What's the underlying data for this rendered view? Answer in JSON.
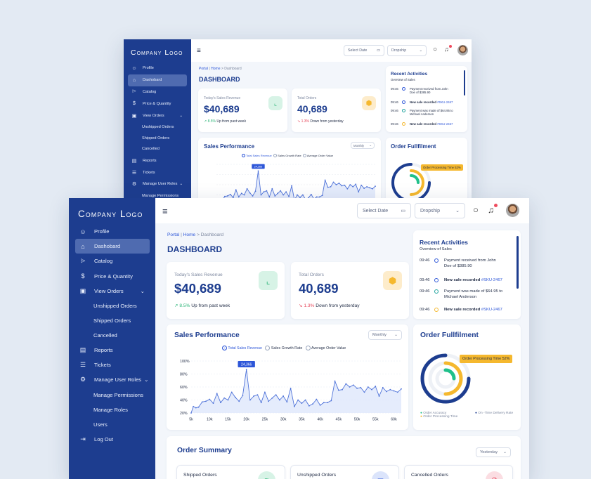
{
  "app": {
    "logo": "Company Logo",
    "user_avatar": "user-avatar"
  },
  "sidebar": {
    "items": [
      {
        "label": "Profile",
        "icon": "user-icon"
      },
      {
        "label": "Dashobard",
        "icon": "home-icon",
        "active": true
      },
      {
        "label": "Catalog",
        "icon": "tag-icon"
      },
      {
        "label": "Price & Quantity",
        "icon": "dollar-icon"
      },
      {
        "label": "View Orders",
        "icon": "orders-icon",
        "expanded": true
      },
      {
        "label": "Reports",
        "icon": "report-icon"
      },
      {
        "label": "Tickets",
        "icon": "ticket-icon"
      },
      {
        "label": "Manage User Roles",
        "icon": "gear-icon",
        "expanded": true
      },
      {
        "label": "Log Out",
        "icon": "logout-icon"
      }
    ],
    "orders_sub": [
      "Unshipped Orders",
      "Shipped Orders",
      "Cancelled"
    ],
    "roles_sub": [
      "Manage Permissions",
      "Manage Roles",
      "Users"
    ]
  },
  "topbar": {
    "date_placeholder": "Select Date",
    "dropdown_value": "Dropship"
  },
  "breadcrumb": {
    "portal": "Portal",
    "sep": "|",
    "home": "Home",
    "arrow": ">",
    "current": "Dashboard"
  },
  "page_title": "DASHBOARD",
  "revenue": {
    "label": "Today's Sales Revenue",
    "value": "$40,689",
    "change": "8.5%",
    "change_text": "Up from past week"
  },
  "orders": {
    "label": "Total Orders",
    "value": "40,689",
    "change": "1.3%",
    "change_text": "Down from yesterday"
  },
  "activities": {
    "title": "Recent Activities",
    "subtitle": "Overview of Sales",
    "items": [
      {
        "time": "09:46",
        "text": "Payment received from John Doe of $385.90",
        "link": "",
        "color": "#2d56d8",
        "bold": false
      },
      {
        "time": "09:46",
        "text": "New sale recorded",
        "link": "#SKU-2467",
        "color": "#2d56d8",
        "bold": true
      },
      {
        "time": "09:46",
        "text": "Payment was made of $64.95 to Michael Anderson",
        "link": "",
        "color": "#20a39e",
        "bold": false
      },
      {
        "time": "09:46",
        "text": "New sale recorded",
        "link": "#SKU-2467",
        "color": "#f5b82e",
        "bold": true
      }
    ]
  },
  "sales_perf": {
    "title": "Sales Performance",
    "period": "Monthly",
    "legend": [
      "Total Sales Revenue",
      "Sales Growth Rate",
      "Average Order Value"
    ],
    "peak_label": "24,366"
  },
  "chart_data": {
    "type": "area",
    "title": "Sales Performance",
    "x_ticks": [
      "5k",
      "10k",
      "15k",
      "20k",
      "25k",
      "30k",
      "35k",
      "40k",
      "45k",
      "50k",
      "55k",
      "60k"
    ],
    "y_ticks": [
      "20%",
      "40%",
      "60%",
      "80%",
      "100%"
    ],
    "ylim": [
      20,
      100
    ],
    "xlim": [
      5000,
      62000
    ],
    "series": [
      {
        "name": "Total Sales Revenue",
        "x": [
          5000,
          5600,
          6300,
          7000,
          8000,
          9000,
          10000,
          11000,
          12000,
          13000,
          14000,
          15000,
          16000,
          17000,
          18000,
          19000,
          20000,
          21000,
          22000,
          23000,
          24000,
          25000,
          26000,
          27000,
          28000,
          29000,
          30000,
          31000,
          32000,
          33000,
          34000,
          35000,
          36000,
          37000,
          38000,
          39000,
          40000,
          41000,
          42000,
          43000,
          44000,
          45000,
          46000,
          47000,
          48000,
          49000,
          50000,
          51000,
          52000,
          53000,
          54000,
          55000,
          56000,
          57000,
          58000,
          59000,
          60000,
          61000,
          62000
        ],
        "y": [
          20,
          30,
          28,
          29,
          37,
          38,
          41,
          35,
          50,
          36,
          43,
          40,
          52,
          44,
          38,
          47,
          87,
          40,
          46,
          48,
          36,
          52,
          38,
          43,
          48,
          40,
          46,
          37,
          58,
          30,
          40,
          35,
          40,
          31,
          34,
          41,
          32,
          36,
          36,
          39,
          69,
          55,
          56,
          65,
          60,
          63,
          58,
          59,
          52,
          60,
          56,
          61,
          46,
          59,
          53,
          56,
          54,
          52,
          57
        ]
      }
    ]
  },
  "fulfilment": {
    "title": "Order Fullfilment",
    "tooltip": "Order Processing Time 52%",
    "legend": [
      "Order Accuracy",
      "On -Time Delivery Rate",
      "Order Processing Time"
    ],
    "colors": {
      "accuracy": "#20c08a",
      "ontime": "#1d3d8f",
      "processing": "#f5b82e"
    }
  },
  "order_summary": {
    "title": "Order Summary",
    "period": "Yesterday",
    "cards": [
      {
        "label": "Shipped Orders",
        "color": "#2fb67a"
      },
      {
        "label": "Unshipped Orders",
        "color": "#2d56d8"
      },
      {
        "label": "Cancelled Orders",
        "color": "#e6455a"
      }
    ]
  }
}
